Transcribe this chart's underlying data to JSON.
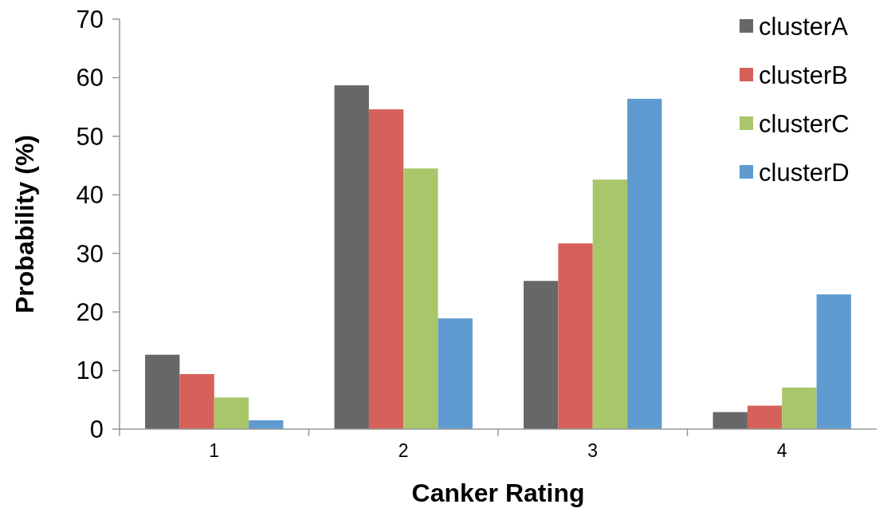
{
  "chart_data": {
    "type": "bar",
    "xlabel": "Canker Rating",
    "ylabel": "Probability (%)",
    "categories": [
      "1",
      "2",
      "3",
      "4"
    ],
    "series": [
      {
        "name": "clusterA",
        "color": "#676767",
        "values": [
          12.7,
          58.7,
          25.3,
          2.9
        ]
      },
      {
        "name": "clusterB",
        "color": "#d5615a",
        "values": [
          9.4,
          54.6,
          31.7,
          4.0
        ]
      },
      {
        "name": "clusterC",
        "color": "#a9c66a",
        "values": [
          5.4,
          44.5,
          42.6,
          7.1
        ]
      },
      {
        "name": "clusterD",
        "color": "#5f9bd0",
        "values": [
          1.5,
          18.9,
          56.4,
          23.0
        ]
      }
    ],
    "ylim": [
      0,
      70
    ],
    "yticks": [
      0,
      10,
      20,
      30,
      40,
      50,
      60,
      70
    ],
    "grid": false,
    "legend": "top right"
  }
}
